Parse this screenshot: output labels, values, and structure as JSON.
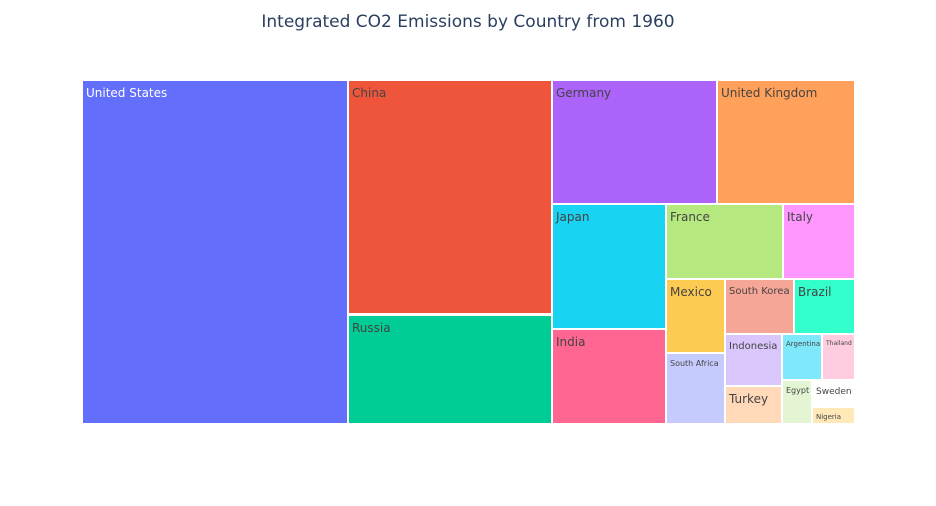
{
  "chart_data": {
    "type": "treemap",
    "title": "Integrated CO2 Emissions by Country from 1960",
    "items": [
      {
        "name": "United States",
        "color": "#636efa",
        "text_color": "#ffffff",
        "value": 26.2
      },
      {
        "name": "China",
        "color": "#ef553b",
        "text_color": "#444444",
        "value": 14.2
      },
      {
        "name": "Russia",
        "color": "#00cc96",
        "text_color": "#444444",
        "value": 6.8
      },
      {
        "name": "Germany",
        "color": "#ab63fa",
        "text_color": "#444444",
        "value": 4.4
      },
      {
        "name": "United Kingdom",
        "color": "#ffa15a",
        "text_color": "#444444",
        "value": 3.7
      },
      {
        "name": "Japan",
        "color": "#19d3f3",
        "text_color": "#444444",
        "value": 3.1
      },
      {
        "name": "India",
        "color": "#ff6692",
        "text_color": "#444444",
        "value": 2.6
      },
      {
        "name": "France",
        "color": "#b6e880",
        "text_color": "#444444",
        "value": 1.9
      },
      {
        "name": "Italy",
        "color": "#ff97ff",
        "text_color": "#444444",
        "value": 1.2
      },
      {
        "name": "Mexico",
        "color": "#fecb52",
        "text_color": "#444444",
        "value": 0.9
      },
      {
        "name": "South Korea",
        "color": "#f6a697",
        "text_color": "#444444",
        "value": 0.8
      },
      {
        "name": "Brazil",
        "color": "#33ffcc",
        "text_color": "#444444",
        "value": 0.7
      },
      {
        "name": "South Africa",
        "color": "#c6cbfd",
        "text_color": "#444444",
        "value": 0.8
      },
      {
        "name": "Indonesia",
        "color": "#d9c6fd",
        "text_color": "#444444",
        "value": 0.6
      },
      {
        "name": "Argentina",
        "color": "#7fe9fb",
        "text_color": "#444444",
        "value": 0.4
      },
      {
        "name": "Thailand",
        "color": "#ffcce0",
        "text_color": "#444444",
        "value": 0.3
      },
      {
        "name": "Turkey",
        "color": "#ffd9b8",
        "text_color": "#444444",
        "value": 0.4
      },
      {
        "name": "Egypt",
        "color": "#e4f5d4",
        "text_color": "#444444",
        "value": 0.2
      },
      {
        "name": "Sweden",
        "color": "#ffffff",
        "text_color": "#444444",
        "value": 0.15
      },
      {
        "name": "Nigeria",
        "color": "#ffe9b8",
        "text_color": "#444444",
        "value": 0.1
      }
    ]
  }
}
